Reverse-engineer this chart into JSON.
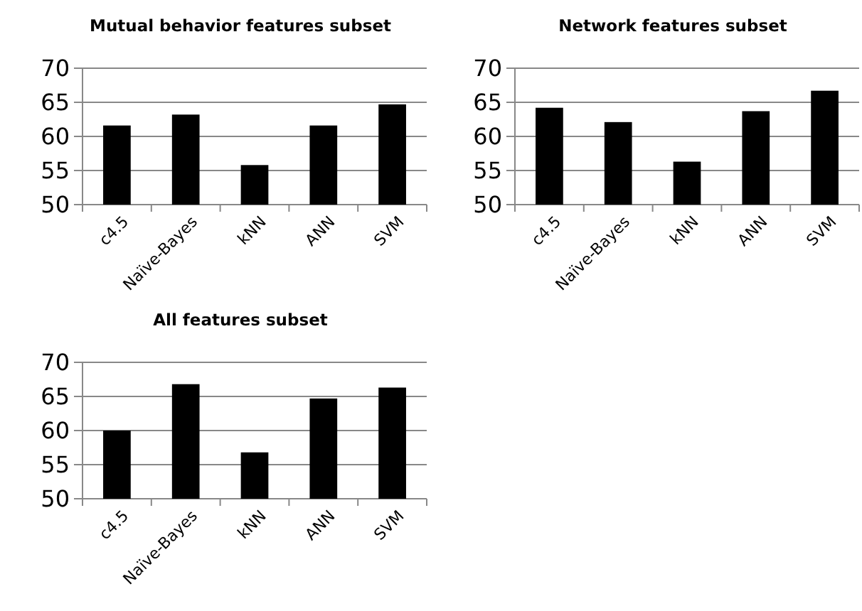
{
  "chart_data": [
    {
      "type": "bar",
      "title": "Mutual behavior features subset",
      "categories": [
        "c4.5",
        "Naïve-Bayes",
        "kNN",
        "ANN",
        "SVM"
      ],
      "values": [
        61.6,
        63.2,
        55.8,
        61.6,
        64.7
      ],
      "color": "#000000",
      "ylim": [
        50,
        70
      ],
      "yticks": [
        50,
        55,
        60,
        65,
        70
      ],
      "grid": "y"
    },
    {
      "type": "bar",
      "title": "Network features subset",
      "categories": [
        "c4.5",
        "Naïve-Bayes",
        "kNN",
        "ANN",
        "SVM"
      ],
      "values": [
        64.2,
        62.1,
        56.3,
        63.7,
        66.7
      ],
      "color": "#000000",
      "ylim": [
        50,
        70
      ],
      "yticks": [
        50,
        55,
        60,
        65,
        70
      ],
      "grid": "y"
    },
    {
      "type": "bar",
      "title": "All features subset",
      "categories": [
        "c4.5",
        "Naïve-Bayes",
        "kNN",
        "ANN",
        "SVM"
      ],
      "values": [
        60.0,
        66.8,
        56.8,
        64.7,
        66.3
      ],
      "color": "#000000",
      "ylim": [
        50,
        70
      ],
      "yticks": [
        50,
        55,
        60,
        65,
        70
      ],
      "grid": "y"
    }
  ]
}
